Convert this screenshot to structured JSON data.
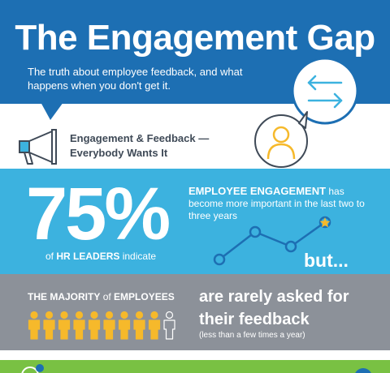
{
  "header": {
    "title": "The Engagement Gap",
    "subtitle": "The truth about employee feedback, and what happens when you don't get it."
  },
  "intro": {
    "title": "Engagement & Feedback — Everybody Wants It"
  },
  "stats": {
    "big_percent": "75%",
    "caption_prefix": "of",
    "caption_bold": "HR LEADERS",
    "caption_suffix": "indicate",
    "engagement_highlight": "EMPLOYEE ENGAGEMENT",
    "engagement_rest": "has become more important in the last two to three years",
    "but_text": "but..."
  },
  "majority": {
    "label_bold_1": "THE MAJORITY",
    "label_of": "of",
    "label_bold_2": "EMPLOYEES",
    "headline": "are rarely asked for their feedback",
    "note": "(less than a few times a year)",
    "people_total": 10,
    "people_highlighted": 9
  },
  "colors": {
    "header_blue": "#1d6fb3",
    "stats_blue": "#3cb2df",
    "gray": "#8c9199",
    "green": "#79c143",
    "accent_yellow": "#f6b92b"
  },
  "icons": {
    "bubble": "speech-bubble-arrows-icon",
    "person": "person-icon",
    "megaphone": "megaphone-icon",
    "trend": "trend-line-icon",
    "people": "person-figure-icon"
  }
}
